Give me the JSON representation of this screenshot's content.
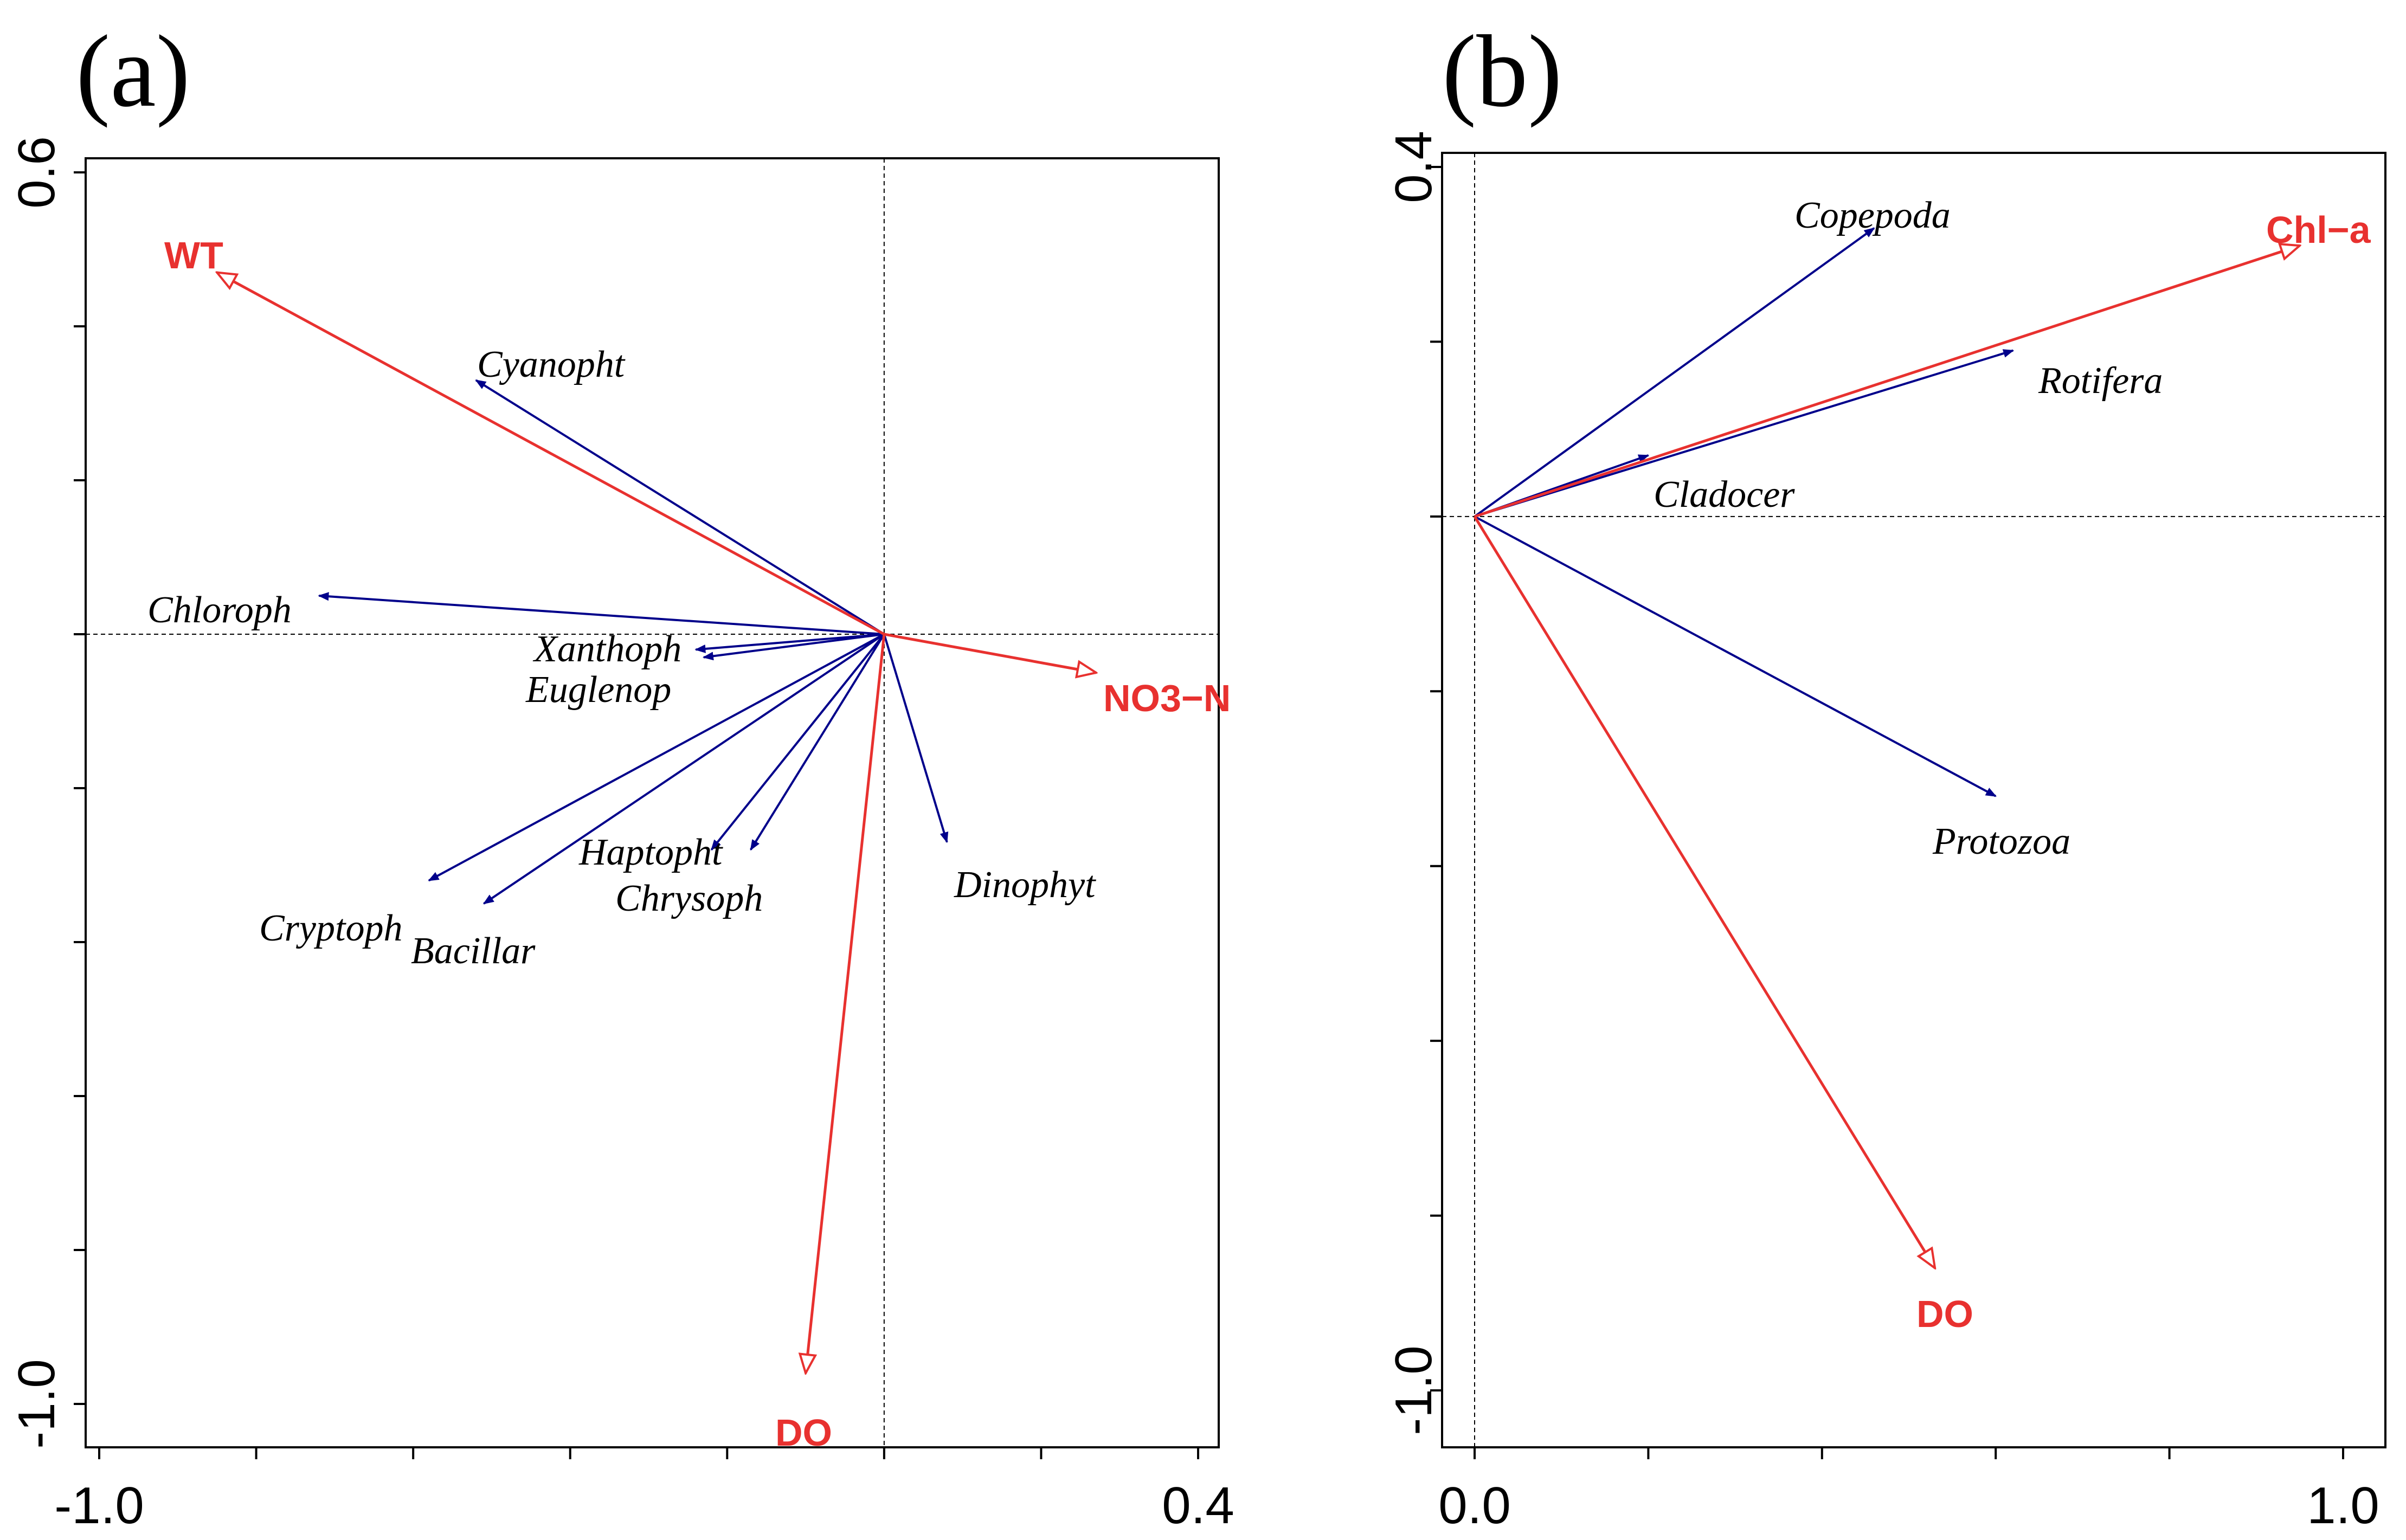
{
  "chart_data": [
    {
      "type": "biplot",
      "panel_label": "(a)",
      "xlim": [
        -1.0,
        0.4
      ],
      "ylim": [
        -1.0,
        0.6
      ],
      "x_tick_labels": [
        "-1.0",
        "0.4"
      ],
      "y_tick_labels": [
        "0.6",
        "-1.0"
      ],
      "origin_lines": true,
      "species_color": "#00008b",
      "env_color": "#e8312f",
      "species": [
        {
          "name": "Cyanopht",
          "x": -0.52,
          "y": 0.33
        },
        {
          "name": "Chloroph",
          "x": -0.72,
          "y": 0.05
        },
        {
          "name": "Xanthoph",
          "x": -0.24,
          "y": -0.02
        },
        {
          "name": "Euglenop",
          "x": -0.23,
          "y": -0.03
        },
        {
          "name": "Haptopht",
          "x": -0.22,
          "y": -0.28
        },
        {
          "name": "Chrysoph",
          "x": -0.17,
          "y": -0.28
        },
        {
          "name": "Cryptoph",
          "x": -0.58,
          "y": -0.32
        },
        {
          "name": "Bacillar",
          "x": -0.51,
          "y": -0.35
        },
        {
          "name": "Dinophyt",
          "x": 0.08,
          "y": -0.27
        }
      ],
      "environment": [
        {
          "name": "WT",
          "x": -0.85,
          "y": 0.47
        },
        {
          "name": "NO3−N",
          "x": 0.27,
          "y": -0.05
        },
        {
          "name": "DO",
          "x": -0.1,
          "y": -0.96
        }
      ]
    },
    {
      "type": "biplot",
      "panel_label": "(b)",
      "xlim": [
        0.0,
        1.02
      ],
      "ylim": [
        -1.02,
        0.42
      ],
      "x_tick_labels": [
        "0.0",
        "1.0"
      ],
      "y_tick_labels": [
        "0.4",
        "-1.0"
      ],
      "origin_lines": true,
      "species_color": "#00008b",
      "env_color": "#e8312f",
      "species": [
        {
          "name": "Copepoda",
          "x": 0.46,
          "y": 0.33
        },
        {
          "name": "Rotifera",
          "x": 0.62,
          "y": 0.19
        },
        {
          "name": "Cladocer",
          "x": 0.2,
          "y": 0.07
        },
        {
          "name": "Protozoa",
          "x": 0.6,
          "y": -0.32
        }
      ],
      "environment": [
        {
          "name": "Chl−a",
          "x": 0.95,
          "y": 0.31
        },
        {
          "name": "DO",
          "x": 0.53,
          "y": -0.86
        }
      ]
    }
  ]
}
